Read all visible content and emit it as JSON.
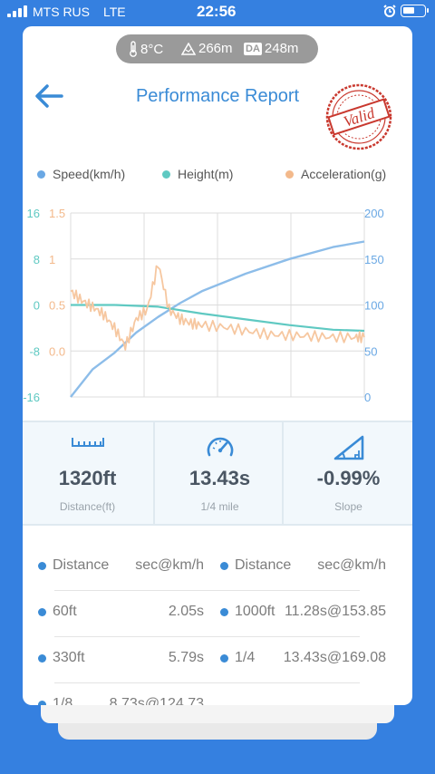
{
  "status_bar": {
    "carrier": "MTS RUS",
    "network": "LTE",
    "time": "22:56"
  },
  "environment": {
    "temperature": "8°C",
    "altitude": "266m",
    "da_label": "DA",
    "density_altitude": "248m"
  },
  "header": {
    "title": "Performance Report",
    "stamp_text": "Valid"
  },
  "legend": [
    {
      "label": "Speed(km/h)",
      "color": "#6aa8e4"
    },
    {
      "label": "Height(m)",
      "color": "#5fc9c2"
    },
    {
      "label": "Acceleration(g)",
      "color": "#f3b98b"
    }
  ],
  "chart_data": {
    "type": "line",
    "series": [
      {
        "name": "Speed(km/h)",
        "color": "#8dbde9",
        "axis": "right",
        "x": [
          0,
          1,
          2,
          3,
          4,
          5,
          6,
          8,
          10,
          12,
          13.43
        ],
        "y": [
          0,
          30,
          48,
          70,
          87,
          102,
          115,
          134,
          150,
          163,
          169
        ]
      },
      {
        "name": "Height(m)",
        "color": "#5fc9c2",
        "axis": "left-height",
        "x": [
          0,
          2,
          4,
          6,
          8,
          10,
          12,
          13.43
        ],
        "y": [
          0,
          0,
          -0.3,
          -1.5,
          -2.5,
          -3.5,
          -4.3,
          -4.5
        ]
      },
      {
        "name": "Acceleration(g)",
        "color": "#f6c7a0",
        "axis": "left-accel",
        "x": [
          0,
          0.5,
          1,
          1.5,
          2,
          2.5,
          3,
          3.5,
          4,
          4.5,
          5,
          5.5,
          6,
          7,
          8,
          9,
          10,
          11,
          12,
          13,
          13.43
        ],
        "y": [
          0.65,
          0.55,
          0.48,
          0.4,
          0.25,
          0.05,
          0.35,
          0.45,
          0.95,
          0.45,
          0.35,
          0.3,
          0.28,
          0.26,
          0.22,
          0.18,
          0.17,
          0.16,
          0.15,
          0.15,
          0.15
        ]
      }
    ],
    "axes": {
      "left_height_ticks": [
        "16",
        "8",
        "0",
        "-8",
        "-16"
      ],
      "left_accel_ticks": [
        "1.5",
        "1",
        "0.5",
        "0.0"
      ],
      "right_speed_ticks": [
        "200",
        "150",
        "100",
        "50",
        "0"
      ],
      "height_range": [
        -16,
        16
      ],
      "accel_range": [
        -0.5,
        1.5
      ],
      "speed_range": [
        0,
        200
      ],
      "x_range": [
        0,
        13.43
      ]
    },
    "grid": true,
    "legend_position": "top"
  },
  "stats": [
    {
      "value": "1320ft",
      "label": "Distance(ft)",
      "icon": "ruler-icon"
    },
    {
      "value": "13.43s",
      "label": "1/4 mile",
      "icon": "speedometer-icon"
    },
    {
      "value": "-0.99%",
      "label": "Slope",
      "icon": "slope-icon"
    }
  ],
  "splits": {
    "headers": [
      {
        "name": "Distance",
        "value": "sec@km/h"
      },
      {
        "name": "Distance",
        "value": "sec@km/h"
      }
    ],
    "rows": [
      [
        {
          "name": "60ft",
          "value": "2.05s"
        },
        {
          "name": "1000ft",
          "value": "11.28s@153.85"
        }
      ],
      [
        {
          "name": "330ft",
          "value": "5.79s"
        },
        {
          "name": "1/4",
          "value": "13.43s@169.08"
        }
      ],
      [
        {
          "name": "1/8",
          "value": "8.73s@124.73"
        },
        {
          "name": "",
          "value": ""
        }
      ]
    ]
  }
}
